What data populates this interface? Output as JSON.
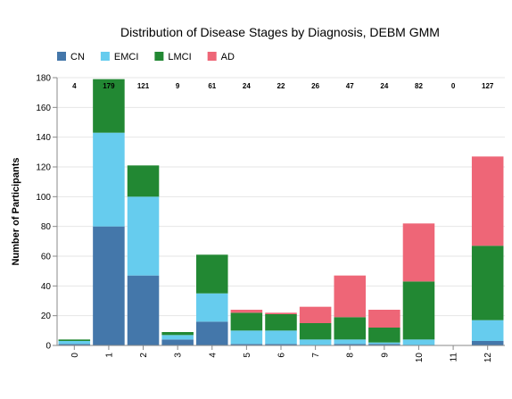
{
  "chart_data": {
    "type": "bar",
    "stacked": true,
    "title": "Distribution of Disease Stages by Diagnosis, DEBM GMM",
    "xlabel": "",
    "ylabel": "Number of Participants",
    "ylim": [
      0,
      180
    ],
    "yticks": [
      0,
      20,
      40,
      60,
      80,
      100,
      120,
      140,
      160,
      180
    ],
    "grid": true,
    "legend_position": "top-left",
    "categories": [
      "0",
      "1",
      "2",
      "3",
      "4",
      "5",
      "6",
      "7",
      "8",
      "9",
      "10",
      "11",
      "12"
    ],
    "series": [
      {
        "name": "CN",
        "color": "#4477aa",
        "values": [
          1,
          80,
          47,
          4,
          16,
          1,
          1,
          0,
          1,
          1,
          0,
          0,
          3
        ]
      },
      {
        "name": "EMCI",
        "color": "#66ccee",
        "values": [
          2,
          63,
          53,
          3,
          19,
          9,
          9,
          4,
          3,
          1,
          4,
          0,
          14
        ]
      },
      {
        "name": "LMCI",
        "color": "#228833",
        "values": [
          1,
          36,
          21,
          2,
          26,
          12,
          11,
          11,
          15,
          10,
          39,
          0,
          50
        ]
      },
      {
        "name": "AD",
        "color": "#ee6677",
        "values": [
          0,
          0,
          0,
          0,
          0,
          2,
          1,
          11,
          28,
          12,
          39,
          0,
          60
        ]
      }
    ],
    "totals": [
      "4",
      "179",
      "121",
      "9",
      "61",
      "24",
      "22",
      "26",
      "47",
      "24",
      "82",
      "0",
      "127"
    ]
  }
}
